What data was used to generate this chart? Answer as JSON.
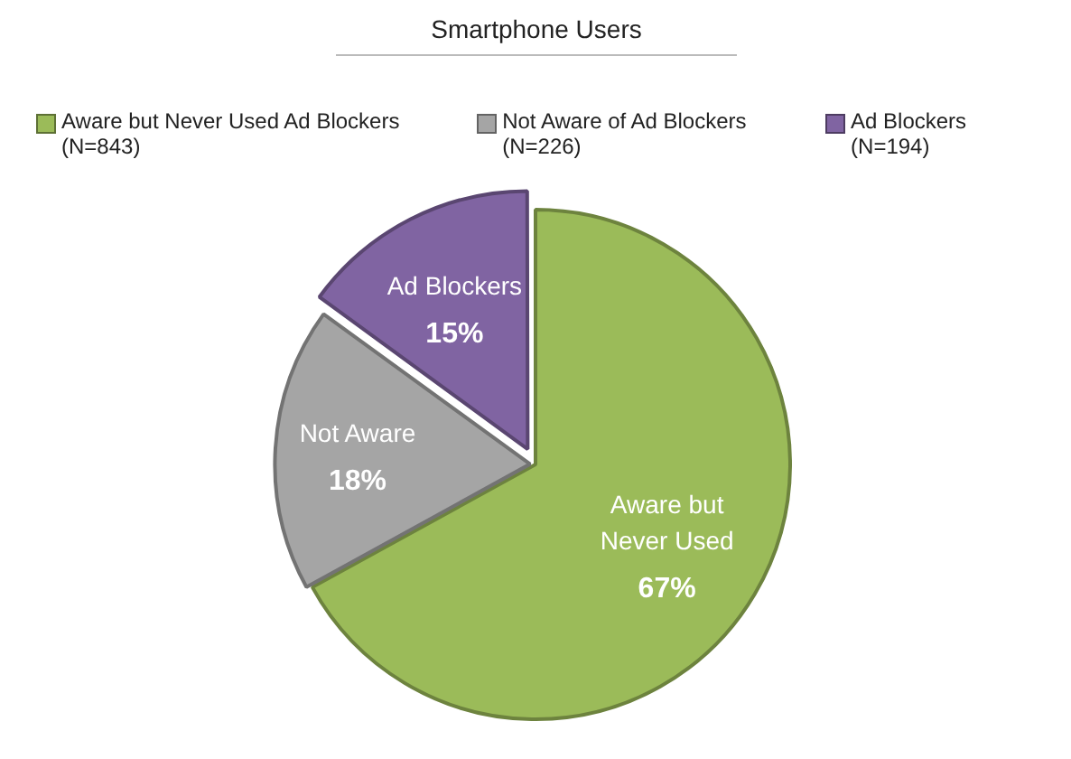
{
  "chart_data": {
    "type": "pie",
    "title": "Smartphone Users",
    "categories": [
      "Aware but Never Used Ad Blockers (N=843)",
      "Not Aware of Ad Blockers (N=226)",
      "Ad Blockers (N=194)"
    ],
    "values": [
      67,
      18,
      15
    ],
    "colors": [
      "#9bbb59",
      "#a5a5a5",
      "#8064a2"
    ],
    "value_labels": [
      "67%",
      "18%",
      "15%"
    ],
    "annotations": [
      {
        "text": "Aware but Never Used",
        "x": "Aware but Never Used Ad Blockers (N=843)"
      },
      {
        "text": "Not Aware",
        "x": "Not Aware of Ad Blockers (N=226)"
      },
      {
        "text": "Ad Blockers",
        "x": "Ad Blockers (N=194)"
      }
    ],
    "legend": "top"
  }
}
